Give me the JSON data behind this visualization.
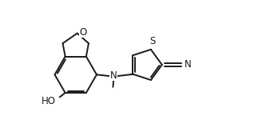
{
  "background_color": "#ffffff",
  "line_color": "#1a1a1a",
  "line_width": 1.4,
  "font_size": 8.5,
  "xlim": [
    0,
    6.5
  ],
  "ylim": [
    -0.5,
    4.0
  ],
  "figsize": [
    3.23,
    1.75
  ],
  "dpi": 100
}
